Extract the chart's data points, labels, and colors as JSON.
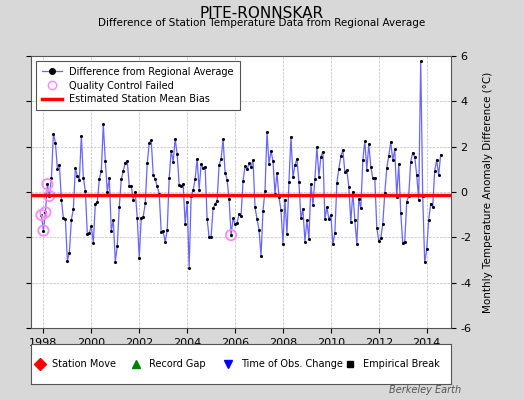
{
  "title": "PITE-RONNSKAR",
  "subtitle": "Difference of Station Temperature Data from Regional Average",
  "ylabel": "Monthly Temperature Anomaly Difference (°C)",
  "xlim": [
    1997.5,
    2015.0
  ],
  "ylim": [
    -6,
    6
  ],
  "yticks": [
    -6,
    -4,
    -2,
    0,
    2,
    4,
    6
  ],
  "xticks": [
    1998,
    2000,
    2002,
    2004,
    2006,
    2008,
    2010,
    2012,
    2014
  ],
  "bias_value": -0.15,
  "line_color": "#6666ff",
  "marker_color": "#000000",
  "bias_color": "#ff0000",
  "qc_color": "#ff88ff",
  "background_color": "#d8d8d8",
  "plot_bg_color": "#ffffff",
  "grid_color": "#bbbbcc",
  "watermark": "Berkeley Earth",
  "seed": 42,
  "amplitude": 1.6,
  "noise_std": 0.75,
  "start_year": 1997.917,
  "end_year": 2014.583,
  "spike_year": 2013.75,
  "spike_value": 5.8,
  "dip_year": 2013.917,
  "dip_value": -3.1,
  "qc_years": [
    1997.917,
    1998.0,
    1998.083,
    1998.167,
    1998.25,
    2005.833
  ],
  "qc_color_fill": "none"
}
